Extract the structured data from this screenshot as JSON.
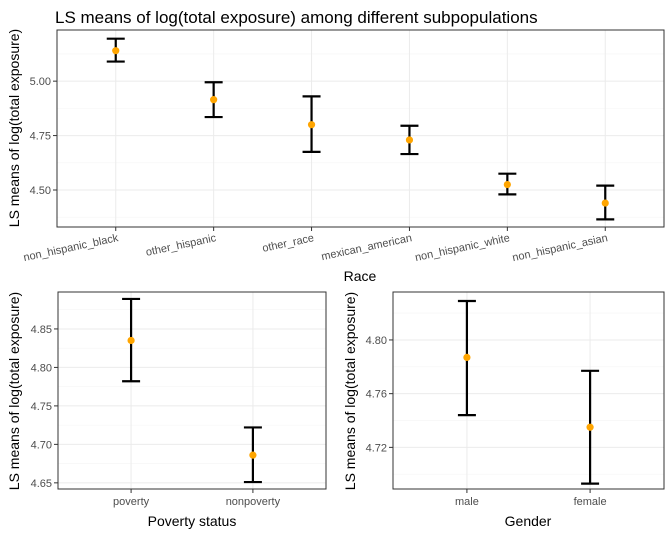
{
  "chart_data": [
    {
      "type": "errorbar",
      "title": "LS means of log(total exposure) among different subpopulations",
      "xlabel": "Race",
      "ylabel": "LS means of log(total exposure)",
      "categories": [
        "non_hispanic_black",
        "other_hispanic",
        "other_race",
        "mexican_american",
        "non_hispanic_white",
        "non_hispanic_asian"
      ],
      "estimates": [
        5.14,
        4.915,
        4.8,
        4.73,
        4.525,
        4.44
      ],
      "lower": [
        5.09,
        4.835,
        4.675,
        4.665,
        4.48,
        4.365
      ],
      "upper": [
        5.195,
        4.995,
        4.93,
        4.795,
        4.575,
        4.52
      ],
      "ylim": [
        4.33,
        5.235
      ],
      "yticks": [
        4.5,
        4.75,
        5.0
      ],
      "ytick_labels": [
        "4.50",
        "4.75",
        "5.00"
      ],
      "grid": true,
      "point_color": "#FFA500"
    },
    {
      "type": "errorbar",
      "xlabel": "Poverty status",
      "ylabel": "LS means of log(total exposure)",
      "categories": [
        "poverty",
        "nonpoverty"
      ],
      "estimates": [
        4.835,
        4.686
      ],
      "lower": [
        4.782,
        4.651
      ],
      "upper": [
        4.889,
        4.722
      ],
      "ylim": [
        4.642,
        4.898
      ],
      "yticks": [
        4.65,
        4.7,
        4.75,
        4.8,
        4.85
      ],
      "ytick_labels": [
        "4.65",
        "4.70",
        "4.75",
        "4.80",
        "4.85"
      ],
      "grid": true,
      "point_color": "#FFA500"
    },
    {
      "type": "errorbar",
      "xlabel": "Gender",
      "ylabel": "LS means of log(total exposure)",
      "categories": [
        "male",
        "female"
      ],
      "estimates": [
        4.787,
        4.735
      ],
      "lower": [
        4.744,
        4.693
      ],
      "upper": [
        4.829,
        4.777
      ],
      "ylim": [
        4.689,
        4.8357
      ],
      "yticks": [
        4.72,
        4.76,
        4.8
      ],
      "ytick_labels": [
        "4.72",
        "4.76",
        "4.80"
      ],
      "grid": true,
      "point_color": "#FFA500"
    }
  ]
}
